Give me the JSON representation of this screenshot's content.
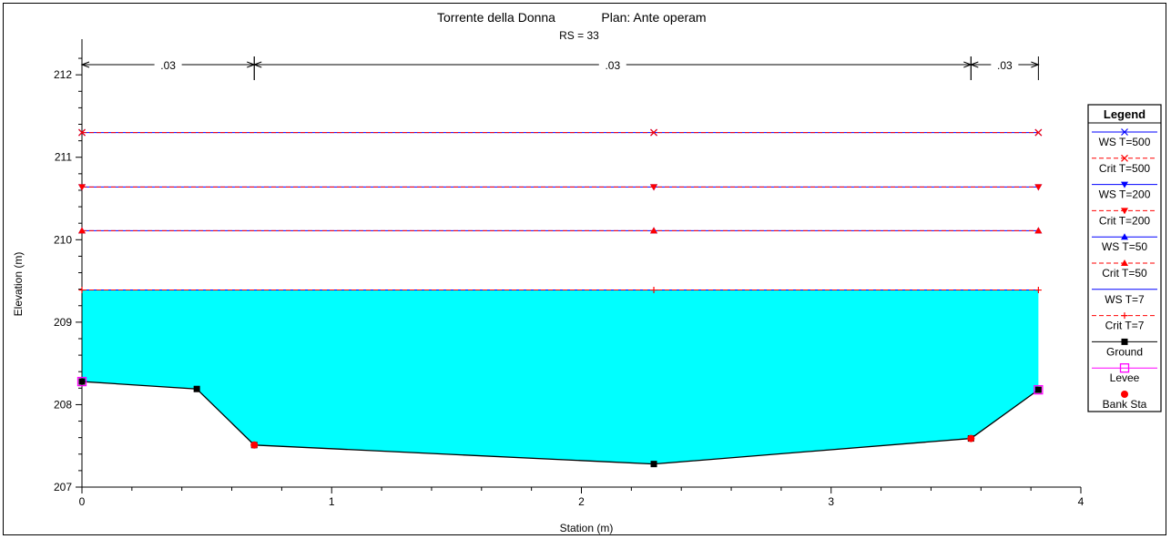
{
  "chart_data": {
    "type": "line",
    "title": "Torrente della Donna",
    "plan": "Plan: Ante operam",
    "subtitle": "RS = 33",
    "xlabel": "Station (m)",
    "ylabel": "Elevation (m)",
    "xlim": [
      0,
      4
    ],
    "ylim": [
      207,
      212.3
    ],
    "xticks": [
      0,
      1,
      2,
      3,
      4
    ],
    "yticks": [
      207,
      208,
      209,
      210,
      211,
      212
    ],
    "manning": [
      {
        "from": 0,
        "to": 0.69,
        "label": ".03"
      },
      {
        "from": 0.69,
        "to": 3.56,
        "label": ".03"
      },
      {
        "from": 3.56,
        "to": 3.83,
        "label": ".03"
      }
    ],
    "ground": {
      "x": [
        0,
        0.46,
        0.69,
        2.29,
        3.56,
        3.83
      ],
      "y": [
        208.28,
        208.19,
        207.51,
        207.28,
        207.59,
        208.18
      ]
    },
    "levees": [
      {
        "x": 0,
        "y": 208.28
      },
      {
        "x": 3.83,
        "y": 208.18
      }
    ],
    "bank_stations": [
      {
        "x": 0.69,
        "y": 207.51
      },
      {
        "x": 3.56,
        "y": 207.59
      }
    ],
    "water_fill_level": 209.39,
    "profiles": [
      {
        "name": "WS T=500",
        "y": 211.3,
        "kind": "ws",
        "marker": "x"
      },
      {
        "name": "Crit T=500",
        "y": 211.3,
        "kind": "crit",
        "marker": "x"
      },
      {
        "name": "WS T=200",
        "y": 210.64,
        "kind": "ws",
        "marker": "tri-down"
      },
      {
        "name": "Crit T=200",
        "y": 210.64,
        "kind": "crit",
        "marker": "tri-down"
      },
      {
        "name": "WS T=50",
        "y": 210.11,
        "kind": "ws",
        "marker": "tri-up"
      },
      {
        "name": "Crit T=50",
        "y": 210.11,
        "kind": "crit",
        "marker": "tri-up"
      },
      {
        "name": "WS T=7",
        "y": 209.39,
        "kind": "ws",
        "marker": "none"
      },
      {
        "name": "Crit T=7",
        "y": 209.39,
        "kind": "crit",
        "marker": "plus"
      }
    ],
    "legend": {
      "title": "Legend",
      "position": "right",
      "entries": [
        {
          "name": "WS T=500",
          "marker": "x",
          "style": "ws"
        },
        {
          "name": "Crit T=500",
          "marker": "x",
          "style": "crit"
        },
        {
          "name": "WS T=200",
          "marker": "tri-down",
          "style": "ws"
        },
        {
          "name": "Crit T=200",
          "marker": "tri-down",
          "style": "crit"
        },
        {
          "name": "WS T=50",
          "marker": "tri-up",
          "style": "ws"
        },
        {
          "name": "Crit T=50",
          "marker": "tri-up",
          "style": "crit"
        },
        {
          "name": "WS T=7",
          "marker": "none",
          "style": "ws"
        },
        {
          "name": "Crit T=7",
          "marker": "plus",
          "style": "crit"
        },
        {
          "name": "Ground",
          "marker": "square",
          "style": "ground"
        },
        {
          "name": "Levee",
          "marker": "open-square",
          "style": "levee"
        },
        {
          "name": "Bank Sta",
          "marker": "dot",
          "style": "bank"
        }
      ]
    },
    "colors": {
      "water": "#00ffff",
      "ws": "#0000ff",
      "crit": "#ff0000",
      "ground": "#000000",
      "levee": "#ff00ff",
      "bank": "#ff0000"
    }
  }
}
